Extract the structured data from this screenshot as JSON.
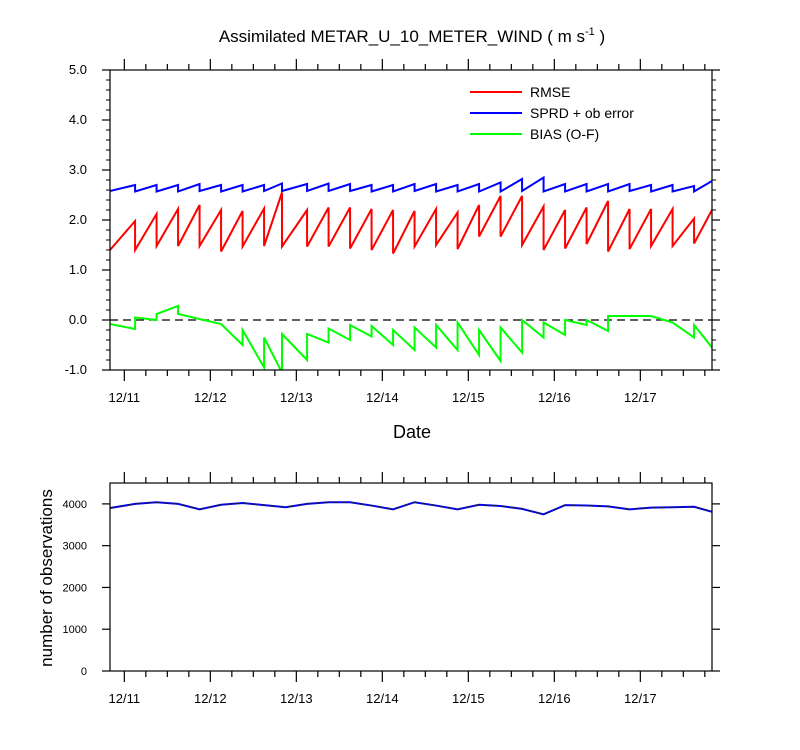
{
  "chart_data": [
    {
      "type": "line",
      "title": "Assimilated METAR_U_10_METER_WIND ( m s",
      "title_units_sup": "-1",
      "title_close": " )",
      "xlabel": "Date",
      "ylabel": "",
      "ylim": [
        -1.0,
        5.0
      ],
      "xlim": [
        "12/10 20:00",
        "12/17 20:00"
      ],
      "x_ticklabels": [
        "12/11",
        "12/12",
        "12/13",
        "12/14",
        "12/15",
        "12/16",
        "12/17"
      ],
      "y_ticklabels": [
        "5.0",
        "4.0",
        "3.0",
        "2.0",
        "1.0",
        "0.0",
        "-1.0"
      ],
      "reference_line": {
        "y": 0.0,
        "style": "dashed"
      },
      "legend_position": "top-right",
      "series": [
        {
          "name": "RMSE",
          "color": "#ff0000",
          "x": [
            "12/10 20:00",
            "12/11 03:00",
            "12/11 03:00",
            "12/11 09:00",
            "12/11 09:00",
            "12/11 15:00",
            "12/11 15:00",
            "12/11 21:00",
            "12/11 21:00",
            "12/12 03:00",
            "12/12 03:00",
            "12/12 09:00",
            "12/12 09:00",
            "12/12 15:00",
            "12/12 15:00",
            "12/12 20:00",
            "12/12 20:00",
            "12/13 03:00",
            "12/13 03:00",
            "12/13 09:00",
            "12/13 09:00",
            "12/13 15:00",
            "12/13 15:00",
            "12/13 21:00",
            "12/13 21:00",
            "12/14 03:00",
            "12/14 03:00",
            "12/14 09:00",
            "12/14 09:00",
            "12/14 15:00",
            "12/14 15:00",
            "12/14 21:00",
            "12/14 21:00",
            "12/15 03:00",
            "12/15 03:00",
            "12/15 09:00",
            "12/15 09:00",
            "12/15 15:00",
            "12/15 15:00",
            "12/15 21:00",
            "12/15 21:00",
            "12/16 03:00",
            "12/16 03:00",
            "12/16 09:00",
            "12/16 09:00",
            "12/16 15:00",
            "12/16 15:00",
            "12/16 21:00",
            "12/16 21:00",
            "12/17 03:00",
            "12/17 03:00",
            "12/17 09:00",
            "12/17 09:00",
            "12/17 15:00",
            "12/17 15:00",
            "12/17 20:00"
          ],
          "values": [
            1.4,
            1.98,
            1.4,
            2.12,
            1.48,
            2.22,
            1.48,
            2.3,
            1.48,
            2.2,
            1.37,
            2.18,
            1.47,
            2.23,
            1.48,
            2.55,
            1.47,
            2.2,
            1.47,
            2.25,
            1.47,
            2.25,
            1.43,
            2.22,
            1.4,
            2.2,
            1.33,
            2.18,
            1.47,
            2.22,
            1.5,
            2.15,
            1.42,
            2.3,
            1.67,
            2.48,
            1.67,
            2.48,
            1.5,
            2.27,
            1.4,
            2.2,
            1.43,
            2.25,
            1.52,
            2.38,
            1.37,
            2.22,
            1.42,
            2.22,
            1.48,
            2.22,
            1.48,
            2.03,
            1.53,
            2.2
          ]
        },
        {
          "name": "SPRD + ob error",
          "color": "#0000ff",
          "x": [
            "12/10 20:00",
            "12/11 03:00",
            "12/11 03:00",
            "12/11 09:00",
            "12/11 09:00",
            "12/11 15:00",
            "12/11 15:00",
            "12/11 21:00",
            "12/11 21:00",
            "12/12 03:00",
            "12/12 03:00",
            "12/12 09:00",
            "12/12 09:00",
            "12/12 15:00",
            "12/12 15:00",
            "12/12 20:00",
            "12/12 20:00",
            "12/13 03:00",
            "12/13 03:00",
            "12/13 09:00",
            "12/13 09:00",
            "12/13 15:00",
            "12/13 15:00",
            "12/13 21:00",
            "12/13 21:00",
            "12/14 03:00",
            "12/14 03:00",
            "12/14 09:00",
            "12/14 09:00",
            "12/14 15:00",
            "12/14 15:00",
            "12/14 21:00",
            "12/14 21:00",
            "12/15 03:00",
            "12/15 03:00",
            "12/15 09:00",
            "12/15 09:00",
            "12/15 15:00",
            "12/15 15:00",
            "12/15 21:00",
            "12/15 21:00",
            "12/16 03:00",
            "12/16 03:00",
            "12/16 09:00",
            "12/16 09:00",
            "12/16 15:00",
            "12/16 15:00",
            "12/16 21:00",
            "12/16 21:00",
            "12/17 03:00",
            "12/17 03:00",
            "12/17 09:00",
            "12/17 09:00",
            "12/17 15:00",
            "12/17 15:00",
            "12/17 20:00"
          ],
          "values": [
            2.58,
            2.7,
            2.57,
            2.7,
            2.57,
            2.7,
            2.57,
            2.72,
            2.58,
            2.7,
            2.57,
            2.7,
            2.57,
            2.7,
            2.58,
            2.73,
            2.58,
            2.72,
            2.58,
            2.73,
            2.58,
            2.72,
            2.58,
            2.7,
            2.57,
            2.7,
            2.57,
            2.72,
            2.58,
            2.72,
            2.57,
            2.7,
            2.57,
            2.72,
            2.57,
            2.75,
            2.57,
            2.82,
            2.58,
            2.85,
            2.57,
            2.72,
            2.57,
            2.72,
            2.57,
            2.72,
            2.57,
            2.72,
            2.58,
            2.7,
            2.57,
            2.7,
            2.57,
            2.68,
            2.57,
            2.78
          ]
        },
        {
          "name": "BIAS (O-F)",
          "color": "#00ff00",
          "x": [
            "12/10 20:00",
            "12/11 03:00",
            "12/11 03:00",
            "12/11 09:00",
            "12/11 09:00",
            "12/11 15:00",
            "12/11 15:00",
            "12/11 21:00",
            "12/11 21:00",
            "12/12 03:00",
            "12/12 03:00",
            "12/12 09:00",
            "12/12 09:00",
            "12/12 15:00",
            "12/12 15:00",
            "12/12 20:00",
            "12/12 20:00",
            "12/13 03:00",
            "12/13 03:00",
            "12/13 09:00",
            "12/13 09:00",
            "12/13 15:00",
            "12/13 15:00",
            "12/13 21:00",
            "12/13 21:00",
            "12/14 03:00",
            "12/14 03:00",
            "12/14 09:00",
            "12/14 09:00",
            "12/14 15:00",
            "12/14 15:00",
            "12/14 21:00",
            "12/14 21:00",
            "12/15 03:00",
            "12/15 03:00",
            "12/15 09:00",
            "12/15 09:00",
            "12/15 15:00",
            "12/15 15:00",
            "12/15 21:00",
            "12/15 21:00",
            "12/16 03:00",
            "12/16 03:00",
            "12/16 09:00",
            "12/16 09:00",
            "12/16 15:00",
            "12/16 15:00",
            "12/16 21:00",
            "12/16 21:00",
            "12/17 03:00",
            "12/17 03:00",
            "12/17 09:00",
            "12/17 09:00",
            "12/17 15:00",
            "12/17 15:00",
            "12/17 20:00"
          ],
          "values": [
            -0.08,
            -0.18,
            0.05,
            0.0,
            0.12,
            0.28,
            0.12,
            0.02,
            0.02,
            -0.08,
            -0.08,
            -0.5,
            -0.2,
            -0.95,
            -0.35,
            -1.05,
            -0.28,
            -0.8,
            -0.28,
            -0.45,
            -0.17,
            -0.4,
            -0.1,
            -0.33,
            -0.12,
            -0.5,
            -0.2,
            -0.6,
            -0.15,
            -0.55,
            -0.1,
            -0.6,
            -0.05,
            -0.7,
            -0.2,
            -0.82,
            -0.15,
            -0.65,
            0.0,
            -0.35,
            -0.05,
            -0.3,
            0.0,
            -0.1,
            0.0,
            -0.22,
            0.08,
            0.08,
            0.08,
            0.08,
            0.08,
            -0.05,
            -0.05,
            -0.35,
            -0.1,
            -0.55
          ]
        }
      ]
    },
    {
      "type": "line",
      "title": "",
      "xlabel": "",
      "ylabel": "number of observations",
      "ylim": [
        0,
        4500
      ],
      "xlim": [
        "12/10 20:00",
        "12/17 20:00"
      ],
      "x_ticklabels": [
        "12/11",
        "12/12",
        "12/13",
        "12/14",
        "12/15",
        "12/16",
        "12/17"
      ],
      "y_ticklabels": [
        "4000",
        "3000",
        "2000",
        "1000",
        "0"
      ],
      "series": [
        {
          "name": "",
          "color": "#0000ff",
          "x": [
            "12/10 20:00",
            "12/11 03:00",
            "12/11 09:00",
            "12/11 15:00",
            "12/11 21:00",
            "12/12 03:00",
            "12/12 09:00",
            "12/12 15:00",
            "12/12 21:00",
            "12/13 03:00",
            "12/13 09:00",
            "12/13 15:00",
            "12/13 21:00",
            "12/14 03:00",
            "12/14 09:00",
            "12/14 15:00",
            "12/14 21:00",
            "12/15 03:00",
            "12/15 09:00",
            "12/15 15:00",
            "12/15 21:00",
            "12/16 03:00",
            "12/16 09:00",
            "12/16 15:00",
            "12/16 21:00",
            "12/17 03:00",
            "12/17 09:00",
            "12/17 15:00",
            "12/17 20:00"
          ],
          "values": [
            3900,
            4000,
            4040,
            4000,
            3870,
            3980,
            4020,
            3970,
            3920,
            4000,
            4040,
            4040,
            3960,
            3870,
            4040,
            3960,
            3870,
            3980,
            3950,
            3880,
            3750,
            3970,
            3960,
            3940,
            3870,
            3910,
            3920,
            3930,
            3810
          ]
        }
      ]
    }
  ]
}
